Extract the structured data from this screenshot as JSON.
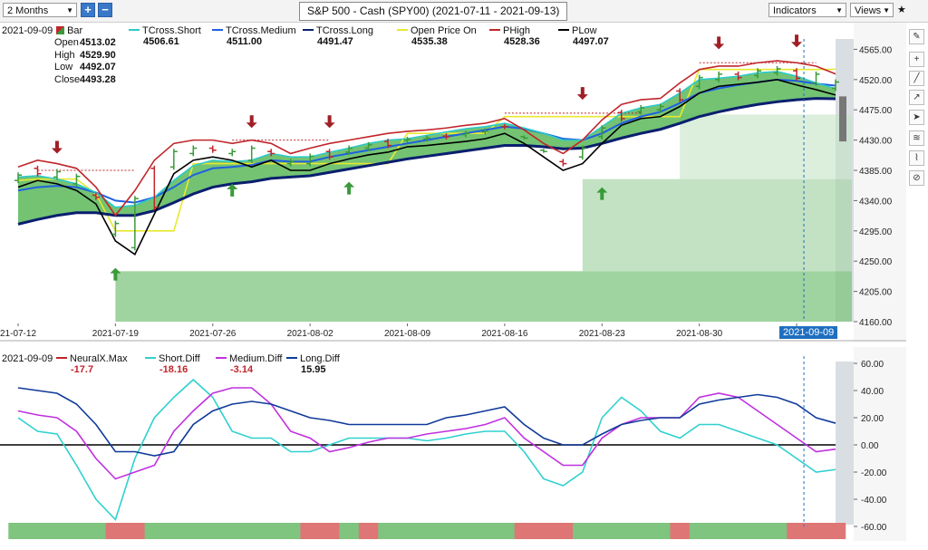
{
  "toolbar": {
    "period": "2 Months",
    "plus": "+",
    "minus": "−",
    "title": "S&P 500 - Cash (SPY00) (2021-07-11 - 2021-09-13)",
    "indicators": "Indicators",
    "views": "Views"
  },
  "price_panel": {
    "date": "2021-09-09",
    "bar_label": "Bar",
    "ohlc": [
      {
        "label": "Open",
        "value": "4513.02"
      },
      {
        "label": "High",
        "value": "4529.90"
      },
      {
        "label": "Low",
        "value": "4492.07"
      },
      {
        "label": "Close",
        "value": "4493.28"
      }
    ],
    "legend": [
      {
        "name": "TCross.Short",
        "value": "4506.61",
        "color": "#2ec9c9"
      },
      {
        "name": "TCross.Medium",
        "value": "4511.00",
        "color": "#2060e0"
      },
      {
        "name": "TCross.Long",
        "value": "4491.47",
        "color": "#0a1f6e"
      },
      {
        "name": "Open Price On",
        "value": "4535.38",
        "color": "#e8e830"
      },
      {
        "name": "PHigh",
        "value": "4528.36",
        "color": "#c0262b"
      },
      {
        "name": "PLow",
        "value": "4497.07",
        "color": "#000000"
      }
    ],
    "y_ticks": [
      "4565.00",
      "4520.00",
      "4475.00",
      "4430.00",
      "4385.00",
      "4340.00",
      "4295.00",
      "4250.00",
      "4205.00",
      "4160.00"
    ],
    "x_ticks": [
      "21-07-12",
      "2021-07-19",
      "2021-07-26",
      "2021-08-02",
      "2021-08-09",
      "2021-08-16",
      "2021-08-23",
      "2021-08-30",
      "2021-09"
    ],
    "cursor_date": "2021-09-09"
  },
  "osc_panel": {
    "date": "2021-09-09",
    "legend": [
      {
        "name": "NeuralX.Max",
        "value": "-17.7",
        "color": "#c0262b"
      },
      {
        "name": "Short.Diff",
        "value": "-18.16",
        "color": "#30d0d0"
      },
      {
        "name": "Medium.Diff",
        "value": "-3.14",
        "color": "#c030e0"
      },
      {
        "name": "Long.Diff",
        "value": "15.95",
        "color": "#103a9a"
      }
    ],
    "y_ticks": [
      "60.00",
      "40.00",
      "20.00",
      "0.00",
      "-20.00",
      "-40.00",
      "-60.00"
    ]
  },
  "colors": {
    "up_bar": "#3a9a3a",
    "down_bar": "#c0262b",
    "band": "#5ab85a",
    "cursor": "#1f6fc0"
  },
  "chart_data": [
    {
      "type": "line",
      "title": "S&P 500 - Cash (SPY00) (2021-07-11 - 2021-09-13)",
      "x": [
        "2021-07-12",
        "2021-07-13",
        "2021-07-14",
        "2021-07-15",
        "2021-07-16",
        "2021-07-19",
        "2021-07-20",
        "2021-07-21",
        "2021-07-22",
        "2021-07-23",
        "2021-07-26",
        "2021-07-27",
        "2021-07-28",
        "2021-07-29",
        "2021-07-30",
        "2021-08-02",
        "2021-08-03",
        "2021-08-04",
        "2021-08-05",
        "2021-08-06",
        "2021-08-09",
        "2021-08-10",
        "2021-08-11",
        "2021-08-12",
        "2021-08-13",
        "2021-08-16",
        "2021-08-17",
        "2021-08-18",
        "2021-08-19",
        "2021-08-20",
        "2021-08-23",
        "2021-08-24",
        "2021-08-25",
        "2021-08-26",
        "2021-08-27",
        "2021-08-30",
        "2021-08-31",
        "2021-09-01",
        "2021-09-02",
        "2021-09-03",
        "2021-09-07",
        "2021-09-08",
        "2021-09-09"
      ],
      "series": [
        {
          "name": "TCross.Short",
          "values": [
            4375,
            4377,
            4372,
            4365,
            4352,
            4330,
            4333,
            4345,
            4370,
            4392,
            4400,
            4398,
            4400,
            4410,
            4405,
            4405,
            4412,
            4418,
            4425,
            4430,
            4432,
            4437,
            4442,
            4447,
            4450,
            4455,
            4448,
            4440,
            4430,
            4430,
            4450,
            4470,
            4478,
            4483,
            4500,
            4520,
            4522,
            4525,
            4530,
            4532,
            4525,
            4515,
            4506.61
          ]
        },
        {
          "name": "TCross.Medium",
          "values": [
            4355,
            4360,
            4362,
            4360,
            4352,
            4340,
            4337,
            4345,
            4360,
            4378,
            4388,
            4390,
            4393,
            4400,
            4398,
            4398,
            4405,
            4410,
            4415,
            4420,
            4425,
            4430,
            4435,
            4440,
            4445,
            4450,
            4447,
            4440,
            4432,
            4430,
            4440,
            4455,
            4465,
            4472,
            4485,
            4500,
            4507,
            4512,
            4516,
            4520,
            4518,
            4514,
            4511.0
          ]
        },
        {
          "name": "TCross.Long",
          "values": [
            4305,
            4312,
            4318,
            4322,
            4322,
            4318,
            4318,
            4325,
            4337,
            4350,
            4360,
            4365,
            4368,
            4373,
            4375,
            4377,
            4382,
            4387,
            4392,
            4397,
            4402,
            4406,
            4410,
            4414,
            4418,
            4422,
            4422,
            4420,
            4417,
            4418,
            4425,
            4433,
            4440,
            4446,
            4455,
            4465,
            4472,
            4478,
            4483,
            4487,
            4490,
            4492,
            4491.47
          ]
        },
        {
          "name": "Open Price On",
          "values": [
            4370,
            4372,
            4372,
            4372,
            4350,
            4295,
            4295,
            4295,
            4295,
            4395,
            4395,
            4395,
            4395,
            4395,
            4395,
            4395,
            4395,
            4395,
            4395,
            4395,
            4440,
            4440,
            4440,
            4440,
            4440,
            4465,
            4465,
            4465,
            4465,
            4465,
            4465,
            4465,
            4465,
            4465,
            4465,
            4535,
            4535,
            4535,
            4535,
            4535,
            4535,
            4535,
            4535.38
          ]
        },
        {
          "name": "PHigh",
          "values": [
            4390,
            4400,
            4395,
            4388,
            4360,
            4318,
            4355,
            4400,
            4425,
            4430,
            4430,
            4425,
            4430,
            4425,
            4410,
            4418,
            4425,
            4430,
            4435,
            4440,
            4443,
            4445,
            4448,
            4452,
            4455,
            4462,
            4445,
            4425,
            4410,
            4430,
            4460,
            4483,
            4490,
            4492,
            4515,
            4535,
            4540,
            4540,
            4545,
            4548,
            4545,
            4540,
            4528.36
          ]
        },
        {
          "name": "PLow",
          "values": [
            4360,
            4370,
            4365,
            4355,
            4335,
            4280,
            4260,
            4320,
            4380,
            4400,
            4405,
            4400,
            4390,
            4400,
            4385,
            4385,
            4395,
            4402,
            4408,
            4412,
            4420,
            4422,
            4425,
            4428,
            4432,
            4440,
            4425,
            4405,
            4385,
            4395,
            4425,
            4452,
            4462,
            4465,
            4480,
            4500,
            4510,
            4513,
            4516,
            4520,
            4512,
            4505,
            4497.07
          ]
        }
      ],
      "ylim": [
        4160,
        4575
      ]
    },
    {
      "type": "line",
      "x": [
        "2021-07-12",
        "2021-07-13",
        "2021-07-14",
        "2021-07-15",
        "2021-07-16",
        "2021-07-19",
        "2021-07-20",
        "2021-07-21",
        "2021-07-22",
        "2021-07-23",
        "2021-07-26",
        "2021-07-27",
        "2021-07-28",
        "2021-07-29",
        "2021-07-30",
        "2021-08-02",
        "2021-08-03",
        "2021-08-04",
        "2021-08-05",
        "2021-08-06",
        "2021-08-09",
        "2021-08-10",
        "2021-08-11",
        "2021-08-12",
        "2021-08-13",
        "2021-08-16",
        "2021-08-17",
        "2021-08-18",
        "2021-08-19",
        "2021-08-20",
        "2021-08-23",
        "2021-08-24",
        "2021-08-25",
        "2021-08-26",
        "2021-08-27",
        "2021-08-30",
        "2021-08-31",
        "2021-09-01",
        "2021-09-02",
        "2021-09-03",
        "2021-09-07",
        "2021-09-08",
        "2021-09-09"
      ],
      "series": [
        {
          "name": "Short.Diff",
          "values": [
            20,
            10,
            8,
            -15,
            -40,
            -55,
            -10,
            20,
            35,
            48,
            35,
            10,
            5,
            5,
            -5,
            -5,
            0,
            5,
            5,
            5,
            5,
            3,
            5,
            8,
            10,
            10,
            -5,
            -25,
            -30,
            -20,
            20,
            35,
            25,
            10,
            5,
            15,
            15,
            10,
            5,
            0,
            -10,
            -20,
            -18.16
          ]
        },
        {
          "name": "Medium.Diff",
          "values": [
            25,
            22,
            20,
            10,
            -10,
            -25,
            -20,
            -15,
            10,
            25,
            38,
            42,
            42,
            30,
            10,
            5,
            -5,
            -2,
            2,
            5,
            5,
            8,
            10,
            12,
            15,
            20,
            5,
            -5,
            -15,
            -15,
            5,
            15,
            20,
            20,
            20,
            35,
            38,
            35,
            25,
            15,
            5,
            -5,
            -3.14
          ]
        },
        {
          "name": "Long.Diff",
          "values": [
            42,
            40,
            38,
            30,
            15,
            -5,
            -5,
            -8,
            -5,
            15,
            25,
            30,
            32,
            30,
            25,
            20,
            18,
            15,
            15,
            15,
            15,
            15,
            20,
            22,
            25,
            28,
            15,
            5,
            0,
            0,
            8,
            15,
            18,
            20,
            20,
            30,
            33,
            35,
            37,
            35,
            30,
            20,
            15.95
          ]
        },
        {
          "name": "NeuralX.Max",
          "values": [
            1,
            1,
            1,
            1,
            1,
            -1,
            -1,
            1,
            1,
            1,
            1,
            1,
            1,
            1,
            1,
            -1,
            -1,
            1,
            -1,
            1,
            1,
            1,
            1,
            1,
            1,
            1,
            -1,
            -1,
            -1,
            1,
            1,
            1,
            1,
            1,
            -1,
            1,
            1,
            1,
            1,
            1,
            -1,
            -1,
            -17.7
          ]
        }
      ],
      "ylim": [
        -60,
        60
      ]
    }
  ]
}
